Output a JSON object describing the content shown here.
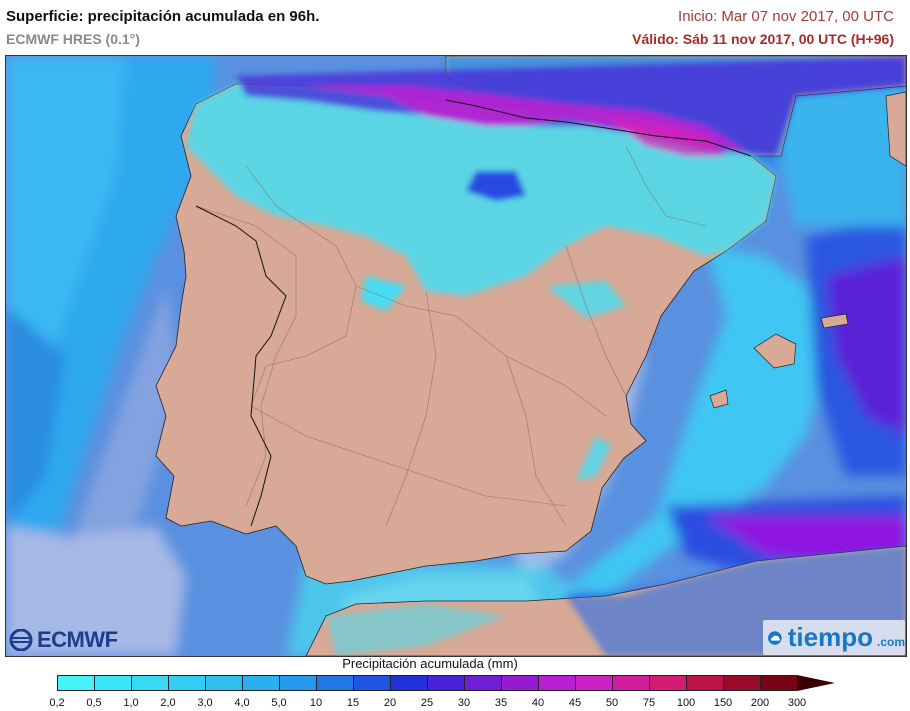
{
  "header": {
    "title": "Superficie: precipitación acumulada en 96h.",
    "model": "ECMWF HRES (0.1°)",
    "start": "Inicio: Mar 07 nov 2017, 00 UTC",
    "valid": "Válido: Sáb 11 nov 2017, 00 UTC (H+96)"
  },
  "logos": {
    "ecmwf": "ECMWF",
    "tiempo": "tiempo",
    "tiempo_domain": ".com"
  },
  "legend": {
    "title": "Precipitación acumulada (mm)",
    "labels": [
      "0,2",
      "0,5",
      "1,0",
      "2,0",
      "3,0",
      "4,0",
      "5,0",
      "10",
      "15",
      "20",
      "25",
      "30",
      "35",
      "40",
      "45",
      "50",
      "75",
      "100",
      "150",
      "200",
      "300"
    ],
    "colors": [
      "#45f2f5",
      "#3de6f4",
      "#38d9f3",
      "#33ccf2",
      "#2ebff0",
      "#2ab0ee",
      "#2599ec",
      "#2277e8",
      "#2055e4",
      "#2233dc",
      "#4a22d8",
      "#6f1ed4",
      "#951ad2",
      "#b61fd2",
      "#cf20c6",
      "#d21e9e",
      "#d41c74",
      "#bc1248",
      "#9a0a28",
      "#760414"
    ],
    "arrow_color": "#3a0000"
  },
  "map": {
    "land_color": "#d7a996",
    "sea_color": "#5a90e0",
    "heavy_rain_color": "#8f14e0",
    "light_rain_color": "#3fe8f0"
  }
}
